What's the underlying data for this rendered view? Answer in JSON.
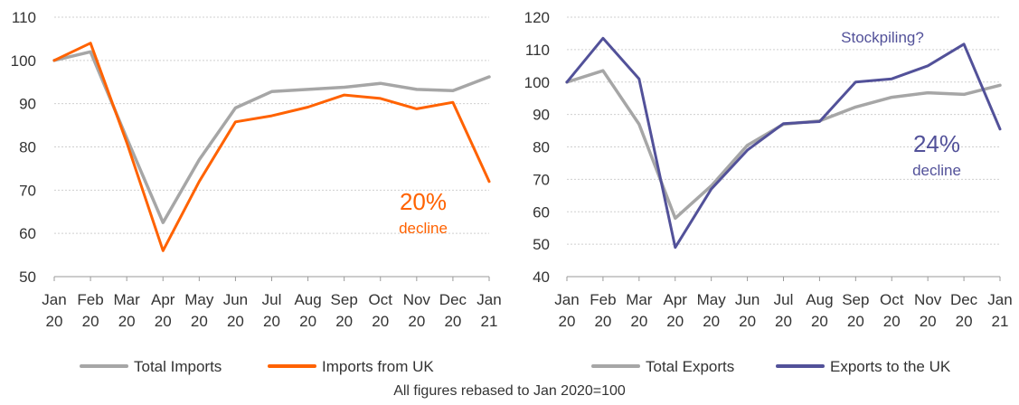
{
  "chart_data": [
    {
      "type": "line",
      "categories": [
        [
          "Jan",
          "20"
        ],
        [
          "Feb",
          "20"
        ],
        [
          "Mar",
          "20"
        ],
        [
          "Apr",
          "20"
        ],
        [
          "May",
          "20"
        ],
        [
          "Jun",
          "20"
        ],
        [
          "Jul",
          "20"
        ],
        [
          "Aug",
          "20"
        ],
        [
          "Sep",
          "20"
        ],
        [
          "Oct",
          "20"
        ],
        [
          "Nov",
          "20"
        ],
        [
          "Dec",
          "20"
        ],
        [
          "Jan",
          "21"
        ]
      ],
      "ylim": [
        50,
        110
      ],
      "yticks": [
        50,
        60,
        70,
        80,
        90,
        100,
        110
      ],
      "grid": "horizontal",
      "legend_position": "bottom",
      "series": [
        {
          "name": "Total Imports",
          "color": "#a6a6a6",
          "values": [
            100,
            102,
            82,
            62.5,
            77,
            89,
            92.8,
            93.3,
            93.8,
            94.7,
            93.3,
            93,
            96.2
          ]
        },
        {
          "name": "Imports from UK",
          "color": "#ff6200",
          "values": [
            100,
            104,
            81,
            56,
            72,
            85.8,
            87.2,
            89.2,
            92,
            91.2,
            88.8,
            90.3,
            72
          ]
        }
      ],
      "annotations": [
        {
          "text": "20%",
          "color": "#ff6200"
        },
        {
          "text": "decline",
          "color": "#ff6200"
        }
      ]
    },
    {
      "type": "line",
      "categories": [
        [
          "Jan",
          "20"
        ],
        [
          "Feb",
          "20"
        ],
        [
          "Mar",
          "20"
        ],
        [
          "Apr",
          "20"
        ],
        [
          "May",
          "20"
        ],
        [
          "Jun",
          "20"
        ],
        [
          "Jul",
          "20"
        ],
        [
          "Aug",
          "20"
        ],
        [
          "Sep",
          "20"
        ],
        [
          "Oct",
          "20"
        ],
        [
          "Nov",
          "20"
        ],
        [
          "Dec",
          "20"
        ],
        [
          "Jan",
          "21"
        ]
      ],
      "ylim": [
        40,
        120
      ],
      "yticks": [
        40,
        50,
        60,
        70,
        80,
        90,
        100,
        110,
        120
      ],
      "grid": "horizontal",
      "legend_position": "bottom",
      "series": [
        {
          "name": "Total Exports",
          "color": "#a6a6a6",
          "values": [
            100,
            103.5,
            87,
            58,
            68,
            80.5,
            87,
            88,
            92.3,
            95.3,
            96.7,
            96.2,
            99
          ]
        },
        {
          "name": "Exports to the UK",
          "color": "#525199",
          "values": [
            100,
            113.5,
            101,
            49,
            67,
            79,
            87.2,
            87.8,
            100,
            101,
            105,
            111.7,
            85.5
          ]
        }
      ],
      "annotations": [
        {
          "text": "Stockpiling?",
          "color": "#525199"
        },
        {
          "text": "24%",
          "color": "#525199"
        },
        {
          "text": "decline",
          "color": "#525199"
        }
      ]
    }
  ],
  "footnote": "All figures rebased to Jan 2020=100"
}
